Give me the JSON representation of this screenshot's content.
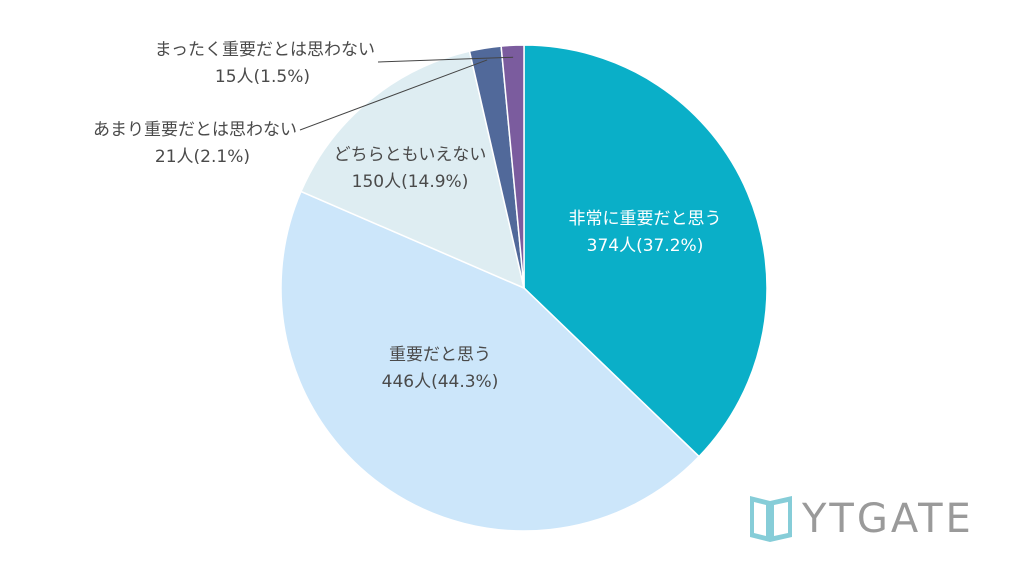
{
  "chart_data": {
    "type": "pie",
    "start": "top, clockwise",
    "slices": [
      {
        "label": "非常に重要だと思う",
        "count": "374人",
        "percent_text": "(37.2%)",
        "value": 37.2,
        "color": "#0aafc8"
      },
      {
        "label": "重要だと思う",
        "count": "446人",
        "percent_text": "(44.3%)",
        "value": 44.3,
        "color": "#cce6fa"
      },
      {
        "label": "どちらともいえない",
        "count": "150人",
        "percent_text": "(14.9%)",
        "value": 14.9,
        "color": "#deedf2"
      },
      {
        "label": "あまり重要だとは思わない",
        "count": "21人",
        "percent_text": "(2.1%)",
        "value": 2.1,
        "color": "#51699a"
      },
      {
        "label": "まったく重要だとは思わない",
        "count": "15人",
        "percent_text": "(1.5%)",
        "value": 1.5,
        "color": "#7b5c9e"
      }
    ]
  },
  "logo": {
    "text": "YTGATE",
    "color": "#9a9a9a",
    "mark_color": "#86cdd8"
  }
}
